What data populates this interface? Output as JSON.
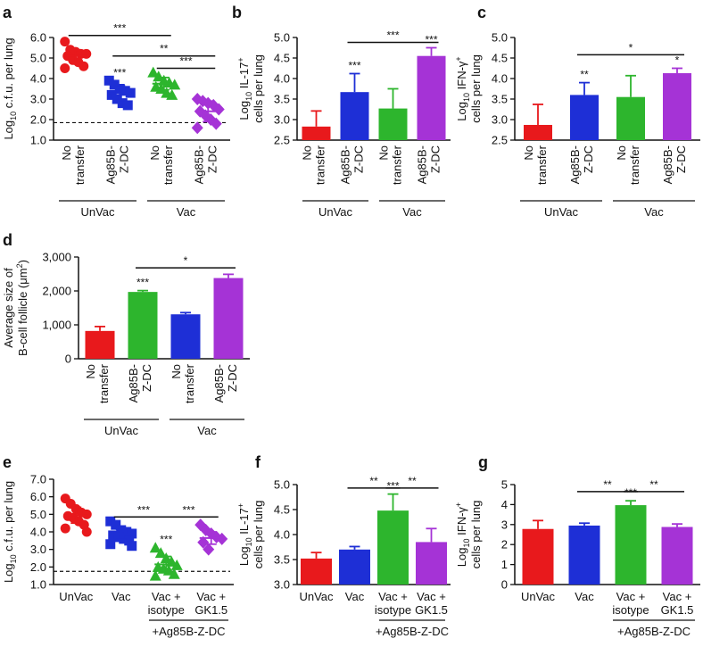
{
  "chart_data": [
    {
      "panel": "a",
      "type": "scatter",
      "ylabel_main": "Log",
      "ylabel_sub": "10",
      "ylabel_rest": " c.f.u. per lung",
      "ylim": [
        1.0,
        6.0
      ],
      "yticks": [
        "1.0",
        "2.0",
        "3.0",
        "4.0",
        "5.0",
        "6.0"
      ],
      "categories": [
        [
          "No",
          "transfer"
        ],
        [
          "Ag85B-",
          "Z-DC"
        ],
        [
          "No",
          "transfer"
        ],
        [
          "Ag85B-",
          "Z-DC"
        ]
      ],
      "groups": [
        {
          "label": "UnVac",
          "span": [
            0,
            1
          ]
        },
        {
          "label": "Vac",
          "span": [
            2,
            3
          ]
        }
      ],
      "series": [
        {
          "name": "UnVac No transfer",
          "marker": "circle",
          "color": "#e8191c",
          "mean": 5.1,
          "sd": 0.3,
          "points": [
            5.8,
            5.4,
            5.3,
            5.2,
            5.2,
            5.1,
            4.9,
            4.8,
            4.6,
            4.5
          ]
        },
        {
          "name": "UnVac Ag85B-Z-DC",
          "marker": "square",
          "color": "#1e2fd6",
          "mean": 3.3,
          "sd": 0.35,
          "points": [
            3.9,
            3.7,
            3.5,
            3.4,
            3.3,
            3.2,
            3.0,
            2.8,
            2.7
          ]
        },
        {
          "name": "Vac No transfer",
          "marker": "triangle",
          "color": "#2db52d",
          "mean": 3.75,
          "sd": 0.3,
          "points": [
            4.3,
            4.1,
            3.9,
            3.8,
            3.7,
            3.6,
            3.5,
            3.3,
            3.2
          ]
        },
        {
          "name": "Vac Ag85B-Z-DC",
          "marker": "diamond",
          "color": "#a533d6",
          "mean": 2.4,
          "sd": 0.5,
          "points": [
            3.0,
            2.9,
            2.8,
            2.7,
            2.5,
            2.4,
            2.2,
            2.0,
            1.8,
            1.6
          ]
        }
      ],
      "dashed_line": 1.85,
      "stars": [
        {
          "index": 1,
          "label": "***"
        }
      ],
      "brackets": [
        {
          "from": 0,
          "to": 2,
          "y": 6.1,
          "label": "***"
        },
        {
          "from": 1,
          "to": 3,
          "y": 5.1,
          "label": "**"
        },
        {
          "from": 2,
          "to": 3,
          "y": 4.5,
          "label": "***"
        }
      ]
    },
    {
      "panel": "b",
      "type": "bar",
      "ylabel_main": "Log",
      "ylabel_sub": "10",
      "ylabel_rest": " IL-17",
      "ylabel_sup": "+",
      "ylabel_line2": "cells per lung",
      "ylim": [
        2.5,
        5.0
      ],
      "yticks": [
        "2.5",
        "3.0",
        "3.5",
        "4.0",
        "4.5",
        "5.0"
      ],
      "categories": [
        [
          "No",
          "transfer"
        ],
        [
          "Ag85B-",
          "Z-DC"
        ],
        [
          "No",
          "transfer"
        ],
        [
          "Ag85B-",
          "Z-DC"
        ]
      ],
      "groups": [
        {
          "label": "UnVac",
          "span": [
            0,
            1
          ]
        },
        {
          "label": "Vac",
          "span": [
            2,
            3
          ]
        }
      ],
      "values": [
        2.83,
        3.67,
        3.27,
        4.55
      ],
      "errors": [
        0.38,
        0.45,
        0.48,
        0.2
      ],
      "colors": [
        "#e8191c",
        "#1e2fd6",
        "#2db52d",
        "#a533d6"
      ],
      "stars": [
        {
          "index": 1,
          "label": "***"
        },
        {
          "index": 3,
          "label": "***"
        }
      ],
      "brackets": [
        {
          "from": 1,
          "to": 3,
          "y": 4.88,
          "label": "***"
        }
      ]
    },
    {
      "panel": "c",
      "type": "bar",
      "ylabel_main": "Log",
      "ylabel_sub": "10",
      "ylabel_rest": " IFN-γ",
      "ylabel_sup": "+",
      "ylabel_line2": "cells per lung",
      "ylim": [
        2.5,
        5.0
      ],
      "yticks": [
        "2.5",
        "3.0",
        "3.5",
        "4.0",
        "4.5",
        "5.0"
      ],
      "categories": [
        [
          "No",
          "transfer"
        ],
        [
          "Ag85B-",
          "Z-DC"
        ],
        [
          "No",
          "transfer"
        ],
        [
          "Ag85B-",
          "Z-DC"
        ]
      ],
      "groups": [
        {
          "label": "UnVac",
          "span": [
            0,
            1
          ]
        },
        {
          "label": "Vac",
          "span": [
            2,
            3
          ]
        }
      ],
      "values": [
        2.87,
        3.6,
        3.55,
        4.13
      ],
      "errors": [
        0.5,
        0.3,
        0.52,
        0.12
      ],
      "colors": [
        "#e8191c",
        "#1e2fd6",
        "#2db52d",
        "#a533d6"
      ],
      "stars": [
        {
          "index": 1,
          "label": "**"
        },
        {
          "index": 3,
          "label": "*"
        }
      ],
      "brackets": [
        {
          "from": 1,
          "to": 3,
          "y": 4.58,
          "label": "*"
        }
      ]
    },
    {
      "panel": "d",
      "type": "bar",
      "ylabel_line1": "Average size of",
      "ylabel_main": "B-cell follicle (μm",
      "ylabel_sup": "2",
      "ylabel_after": ")",
      "ylim": [
        0,
        3000
      ],
      "yticks": [
        "0",
        "1,000",
        "2,000",
        "3,000"
      ],
      "categories": [
        [
          "No",
          "transfer"
        ],
        [
          "Ag85B-",
          "Z-DC"
        ],
        [
          "No",
          "transfer"
        ],
        [
          "Ag85B-",
          "Z-DC"
        ]
      ],
      "groups": [
        {
          "label": "UnVac",
          "span": [
            0,
            1
          ]
        },
        {
          "label": "Vac",
          "span": [
            2,
            3
          ]
        }
      ],
      "values": [
        820,
        1970,
        1310,
        2380
      ],
      "errors": [
        130,
        40,
        50,
        110
      ],
      "colors": [
        "#e8191c",
        "#2db52d",
        "#1e2fd6",
        "#a533d6"
      ],
      "stars": [
        {
          "index": 1,
          "label": "***"
        }
      ],
      "brackets": [
        {
          "from": 1,
          "to": 3,
          "y": 2680,
          "label": "*"
        }
      ]
    },
    {
      "panel": "e",
      "type": "scatter",
      "ylabel_main": "Log",
      "ylabel_sub": "10",
      "ylabel_rest": " c.f.u. per lung",
      "ylim": [
        1.0,
        7.0
      ],
      "yticks": [
        "1.0",
        "2.0",
        "3.0",
        "4.0",
        "5.0",
        "6.0",
        "7.0"
      ],
      "categories": [
        [
          "UnVac"
        ],
        [
          "Vac"
        ],
        [
          "Vac +",
          "isotype"
        ],
        [
          "Vac +",
          "GK1.5"
        ]
      ],
      "groups": [
        {
          "label": "+Ag85B-Z-DC",
          "span": [
            2,
            3
          ]
        }
      ],
      "series": [
        {
          "name": "UnVac",
          "marker": "circle",
          "color": "#e8191c",
          "mean": 4.95,
          "sd": 0.45,
          "points": [
            5.9,
            5.6,
            5.3,
            5.1,
            5.0,
            4.9,
            4.8,
            4.6,
            4.4,
            4.2,
            4.0
          ]
        },
        {
          "name": "Vac",
          "marker": "square",
          "color": "#1e2fd6",
          "mean": 3.85,
          "sd": 0.3,
          "points": [
            4.6,
            4.4,
            4.1,
            4.0,
            3.9,
            3.8,
            3.7,
            3.6,
            3.5,
            3.3,
            3.2
          ]
        },
        {
          "name": "Vac + isotype",
          "marker": "triangle",
          "color": "#2db52d",
          "mean": 2.15,
          "sd": 0.45,
          "points": [
            3.1,
            2.8,
            2.5,
            2.3,
            2.1,
            2.0,
            1.9,
            1.8,
            1.6,
            1.5
          ]
        },
        {
          "name": "Vac + GK1.5",
          "marker": "diamond",
          "color": "#a533d6",
          "mean": 3.65,
          "sd": 0.35,
          "points": [
            4.4,
            4.1,
            3.9,
            3.7,
            3.6,
            3.4,
            3.0
          ]
        }
      ],
      "dashed_line": 1.75,
      "stars": [
        {
          "index": 2,
          "label": "***"
        }
      ],
      "brackets": [
        {
          "from": 1,
          "to": 2,
          "y": 4.85,
          "label": "***"
        },
        {
          "from": 2,
          "to": 3,
          "y": 4.85,
          "label": "***"
        }
      ]
    },
    {
      "panel": "f",
      "type": "bar",
      "ylabel_main": "Log",
      "ylabel_sub": "10",
      "ylabel_rest": " IL-17",
      "ylabel_sup": "+",
      "ylabel_line2": "cells per lung",
      "ylim": [
        3.0,
        5.0
      ],
      "yticks": [
        "3.0",
        "3.5",
        "4.0",
        "4.5",
        "5.0"
      ],
      "categories": [
        [
          "UnVac"
        ],
        [
          "Vac"
        ],
        [
          "Vac +",
          "isotype"
        ],
        [
          "Vac +",
          "GK1.5"
        ]
      ],
      "groups": [
        {
          "label": "+Ag85B-Z-DC",
          "span": [
            2,
            3
          ]
        }
      ],
      "values": [
        3.52,
        3.7,
        4.48,
        3.85
      ],
      "errors": [
        0.12,
        0.06,
        0.33,
        0.27
      ],
      "colors": [
        "#e8191c",
        "#1e2fd6",
        "#2db52d",
        "#a533d6"
      ],
      "stars": [
        {
          "index": 2,
          "label": "***"
        }
      ],
      "brackets": [
        {
          "from": 1,
          "to": 2,
          "y": 4.93,
          "label": "**"
        },
        {
          "from": 2,
          "to": 3,
          "y": 4.93,
          "label": "**"
        }
      ]
    },
    {
      "panel": "g",
      "type": "bar",
      "ylabel_main": "Log",
      "ylabel_sub": "10",
      "ylabel_rest": " IFN-γ",
      "ylabel_sup": "+",
      "ylabel_line2": "cells per lung",
      "ylim": [
        0,
        5
      ],
      "yticks": [
        "0",
        "1",
        "2",
        "3",
        "4",
        "5"
      ],
      "categories": [
        [
          "UnVac"
        ],
        [
          "Vac"
        ],
        [
          "Vac +",
          "isotype"
        ],
        [
          "Vac +",
          "GK1.5"
        ]
      ],
      "groups": [
        {
          "label": "+Ag85B-Z-DC",
          "span": [
            2,
            3
          ]
        }
      ],
      "values": [
        2.78,
        2.95,
        3.97,
        2.88
      ],
      "errors": [
        0.42,
        0.12,
        0.22,
        0.15
      ],
      "colors": [
        "#e8191c",
        "#1e2fd6",
        "#2db52d",
        "#a533d6"
      ],
      "stars": [
        {
          "index": 2,
          "label": "***"
        }
      ],
      "brackets": [
        {
          "from": 1,
          "to": 2,
          "y": 4.65,
          "label": "**"
        },
        {
          "from": 2,
          "to": 3,
          "y": 4.65,
          "label": "**"
        }
      ]
    }
  ]
}
